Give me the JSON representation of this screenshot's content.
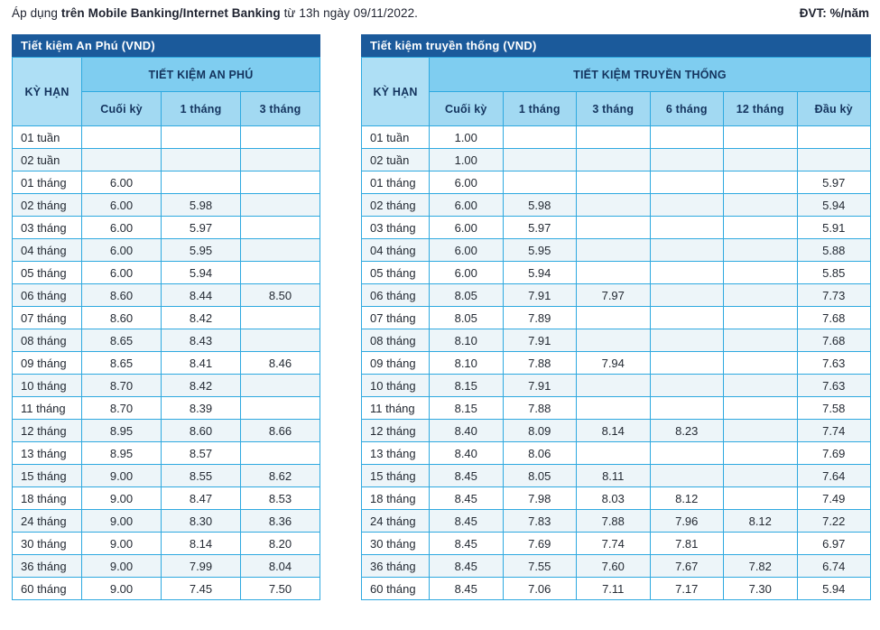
{
  "page": {
    "note_prefix": "Áp dụng ",
    "note_bold": "trên Mobile Banking/Internet Banking",
    "note_suffix": " từ 13h ngày 09/11/2022.",
    "unit_label": "ĐVT: %/năm"
  },
  "colors": {
    "title_bar": "#1b5a9b",
    "group_header_bg": "#7fcdf0",
    "sub_header_bg": "#a2d9f2",
    "kyhan_bg": "#aedff5",
    "grid_border": "#2ea9e0",
    "alt_row_bg": "#edf5f9",
    "header_text": "#14345e",
    "data_text": "#242a33"
  },
  "tables": [
    {
      "title": "Tiết kiệm An Phú (VND)",
      "kyhan_label": "KỲ HẠN",
      "group_label": "TIẾT KIỆM AN PHÚ",
      "columns": [
        "Cuối kỳ",
        "1 tháng",
        "3 tháng"
      ],
      "rows": [
        {
          "label": "01 tuần",
          "values": [
            "",
            "",
            ""
          ]
        },
        {
          "label": "02 tuần",
          "values": [
            "",
            "",
            ""
          ]
        },
        {
          "label": "01 tháng",
          "values": [
            "6.00",
            "",
            ""
          ]
        },
        {
          "label": "02 tháng",
          "values": [
            "6.00",
            "5.98",
            ""
          ]
        },
        {
          "label": "03 tháng",
          "values": [
            "6.00",
            "5.97",
            ""
          ]
        },
        {
          "label": "04 tháng",
          "values": [
            "6.00",
            "5.95",
            ""
          ]
        },
        {
          "label": "05 tháng",
          "values": [
            "6.00",
            "5.94",
            ""
          ]
        },
        {
          "label": "06 tháng",
          "values": [
            "8.60",
            "8.44",
            "8.50"
          ]
        },
        {
          "label": "07 tháng",
          "values": [
            "8.60",
            "8.42",
            ""
          ]
        },
        {
          "label": "08 tháng",
          "values": [
            "8.65",
            "8.43",
            ""
          ]
        },
        {
          "label": "09 tháng",
          "values": [
            "8.65",
            "8.41",
            "8.46"
          ]
        },
        {
          "label": "10 tháng",
          "values": [
            "8.70",
            "8.42",
            ""
          ]
        },
        {
          "label": "11 tháng",
          "values": [
            "8.70",
            "8.39",
            ""
          ]
        },
        {
          "label": "12 tháng",
          "values": [
            "8.95",
            "8.60",
            "8.66"
          ]
        },
        {
          "label": "13 tháng",
          "values": [
            "8.95",
            "8.57",
            ""
          ]
        },
        {
          "label": "15 tháng",
          "values": [
            "9.00",
            "8.55",
            "8.62"
          ]
        },
        {
          "label": "18 tháng",
          "values": [
            "9.00",
            "8.47",
            "8.53"
          ]
        },
        {
          "label": "24 tháng",
          "values": [
            "9.00",
            "8.30",
            "8.36"
          ]
        },
        {
          "label": "30 tháng",
          "values": [
            "9.00",
            "8.14",
            "8.20"
          ]
        },
        {
          "label": "36 tháng",
          "values": [
            "9.00",
            "7.99",
            "8.04"
          ]
        },
        {
          "label": "60 tháng",
          "values": [
            "9.00",
            "7.45",
            "7.50"
          ]
        }
      ]
    },
    {
      "title": "Tiết kiệm truyền thống (VND)",
      "kyhan_label": "KỲ HẠN",
      "group_label": "TIẾT KIỆM TRUYỀN THỐNG",
      "columns": [
        "Cuối kỳ",
        "1 tháng",
        "3 tháng",
        "6 tháng",
        "12 tháng",
        "Đầu kỳ"
      ],
      "rows": [
        {
          "label": "01 tuần",
          "values": [
            "1.00",
            "",
            "",
            "",
            "",
            ""
          ]
        },
        {
          "label": "02 tuần",
          "values": [
            "1.00",
            "",
            "",
            "",
            "",
            ""
          ]
        },
        {
          "label": "01 tháng",
          "values": [
            "6.00",
            "",
            "",
            "",
            "",
            "5.97"
          ]
        },
        {
          "label": "02 tháng",
          "values": [
            "6.00",
            "5.98",
            "",
            "",
            "",
            "5.94"
          ]
        },
        {
          "label": "03 tháng",
          "values": [
            "6.00",
            "5.97",
            "",
            "",
            "",
            "5.91"
          ]
        },
        {
          "label": "04 tháng",
          "values": [
            "6.00",
            "5.95",
            "",
            "",
            "",
            "5.88"
          ]
        },
        {
          "label": "05 tháng",
          "values": [
            "6.00",
            "5.94",
            "",
            "",
            "",
            "5.85"
          ]
        },
        {
          "label": "06 tháng",
          "values": [
            "8.05",
            "7.91",
            "7.97",
            "",
            "",
            "7.73"
          ]
        },
        {
          "label": "07 tháng",
          "values": [
            "8.05",
            "7.89",
            "",
            "",
            "",
            "7.68"
          ]
        },
        {
          "label": "08 tháng",
          "values": [
            "8.10",
            "7.91",
            "",
            "",
            "",
            "7.68"
          ]
        },
        {
          "label": "09 tháng",
          "values": [
            "8.10",
            "7.88",
            "7.94",
            "",
            "",
            "7.63"
          ]
        },
        {
          "label": "10 tháng",
          "values": [
            "8.15",
            "7.91",
            "",
            "",
            "",
            "7.63"
          ]
        },
        {
          "label": "11 tháng",
          "values": [
            "8.15",
            "7.88",
            "",
            "",
            "",
            "7.58"
          ]
        },
        {
          "label": "12 tháng",
          "values": [
            "8.40",
            "8.09",
            "8.14",
            "8.23",
            "",
            "7.74"
          ]
        },
        {
          "label": "13 tháng",
          "values": [
            "8.40",
            "8.06",
            "",
            "",
            "",
            "7.69"
          ]
        },
        {
          "label": "15 tháng",
          "values": [
            "8.45",
            "8.05",
            "8.11",
            "",
            "",
            "7.64"
          ]
        },
        {
          "label": "18 tháng",
          "values": [
            "8.45",
            "7.98",
            "8.03",
            "8.12",
            "",
            "7.49"
          ]
        },
        {
          "label": "24 tháng",
          "values": [
            "8.45",
            "7.83",
            "7.88",
            "7.96",
            "8.12",
            "7.22"
          ]
        },
        {
          "label": "30 tháng",
          "values": [
            "8.45",
            "7.69",
            "7.74",
            "7.81",
            "",
            "6.97"
          ]
        },
        {
          "label": "36 tháng",
          "values": [
            "8.45",
            "7.55",
            "7.60",
            "7.67",
            "7.82",
            "6.74"
          ]
        },
        {
          "label": "60 tháng",
          "values": [
            "8.45",
            "7.06",
            "7.11",
            "7.17",
            "7.30",
            "5.94"
          ]
        }
      ]
    }
  ]
}
